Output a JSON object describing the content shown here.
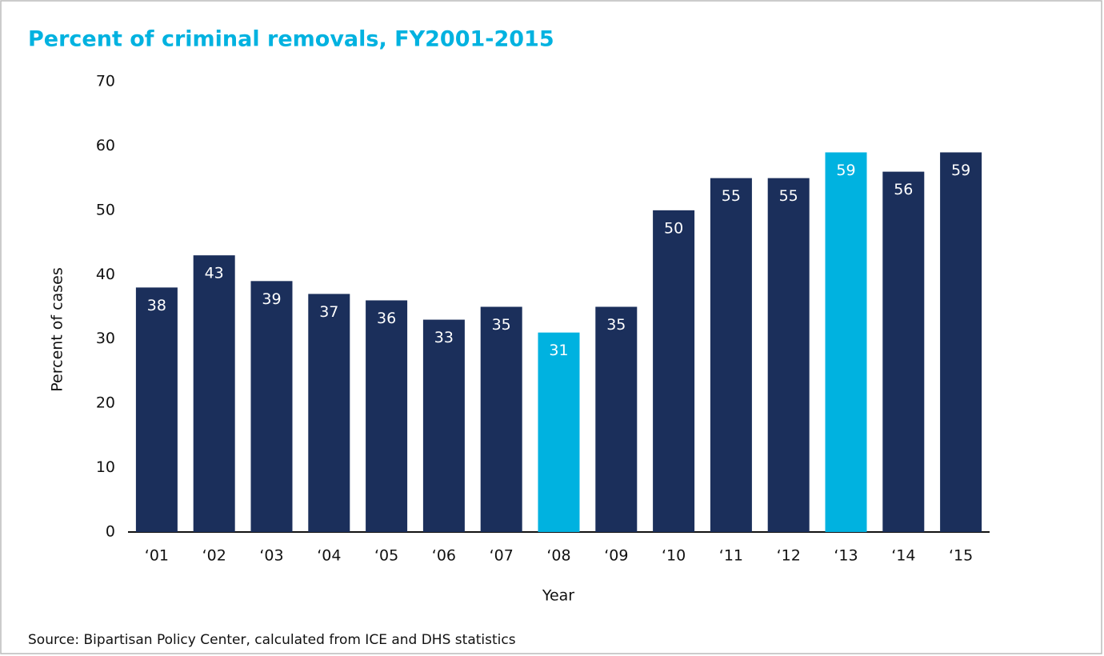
{
  "chart_data": {
    "type": "bar",
    "title": "Percent of criminal removals, FY2001-2015",
    "y_label": "Percent of cases",
    "x_label": "Year",
    "source": "Source: Bipartisan Policy Center, calculated from ICE and DHS statistics",
    "categories": [
      "‘01",
      "‘02",
      "‘03",
      "‘04",
      "‘05",
      "‘06",
      "‘07",
      "‘08",
      "‘09",
      "‘10",
      "‘11",
      "‘12",
      "‘13",
      "‘14",
      "‘15"
    ],
    "values": [
      38,
      43,
      39,
      37,
      36,
      33,
      35,
      31,
      35,
      50,
      55,
      55,
      59,
      56,
      59
    ],
    "colors": [
      "#1b2f5b",
      "#1b2f5b",
      "#1b2f5b",
      "#1b2f5b",
      "#1b2f5b",
      "#1b2f5b",
      "#1b2f5b",
      "#00b2e0",
      "#1b2f5b",
      "#1b2f5b",
      "#1b2f5b",
      "#1b2f5b",
      "#00b2e0",
      "#1b2f5b",
      "#1b2f5b"
    ],
    "ylim": [
      0,
      70
    ],
    "yticks": [
      0,
      10,
      20,
      30,
      40,
      50,
      60,
      70
    ],
    "grid": false
  }
}
